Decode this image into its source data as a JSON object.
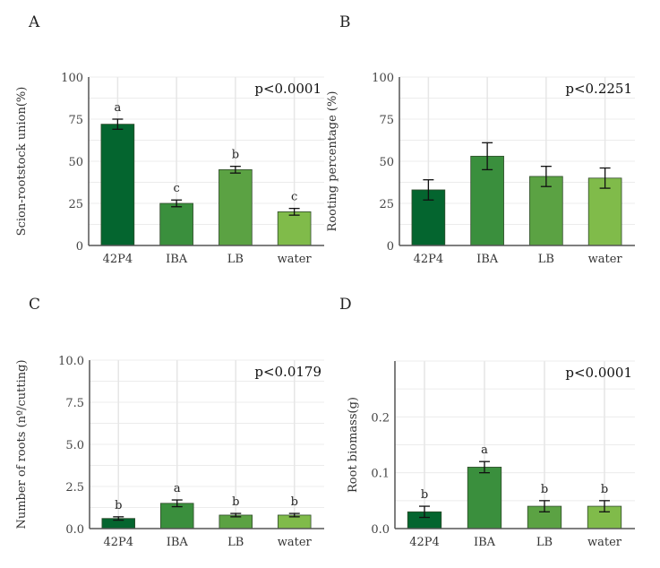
{
  "figure": {
    "panels_count": 4
  },
  "chart_data": [
    {
      "type": "bar",
      "panel": "A",
      "title": "",
      "xlabel": "",
      "ylabel": "Scion-rootstock union(%)",
      "categories": [
        "42P4",
        "IBA",
        "LB",
        "water"
      ],
      "values": [
        72,
        25,
        45,
        20
      ],
      "errors": [
        3,
        2,
        2,
        2
      ],
      "significance_letters": [
        "a",
        "c",
        "b",
        "c"
      ],
      "p_value": "p<0.0001",
      "ylim": [
        0,
        100
      ],
      "yticks": [
        0,
        25,
        50,
        75,
        100
      ],
      "ytick_labels": [
        "0",
        "25",
        "50",
        "75",
        "100"
      ],
      "minor_gridlines_every": 12.5,
      "grid": true,
      "colors": [
        "#04652f",
        "#3a8f3d",
        "#5ba243",
        "#80bb4a"
      ]
    },
    {
      "type": "bar",
      "panel": "B",
      "title": "",
      "xlabel": "",
      "ylabel": "Rooting percentage (%)",
      "categories": [
        "42P4",
        "IBA",
        "LB",
        "water"
      ],
      "values": [
        33,
        53,
        41,
        40
      ],
      "errors": [
        6,
        8,
        6,
        6
      ],
      "significance_letters": [
        "",
        "",
        "",
        ""
      ],
      "p_value": "p<0.2251",
      "ylim": [
        0,
        100
      ],
      "yticks": [
        0,
        25,
        50,
        75,
        100
      ],
      "ytick_labels": [
        "0",
        "25",
        "50",
        "75",
        "100"
      ],
      "minor_gridlines_every": 12.5,
      "grid": true,
      "colors": [
        "#04652f",
        "#3a8f3d",
        "#5ba243",
        "#80bb4a"
      ]
    },
    {
      "type": "bar",
      "panel": "C",
      "title": "",
      "xlabel": "",
      "ylabel": "Number of roots (nº/cutting)",
      "categories": [
        "42P4",
        "IBA",
        "LB",
        "water"
      ],
      "values": [
        0.6,
        1.5,
        0.8,
        0.8
      ],
      "errors": [
        0.1,
        0.2,
        0.1,
        0.1
      ],
      "significance_letters": [
        "b",
        "a",
        "b",
        "b"
      ],
      "p_value": "p<0.0179",
      "ylim": [
        0,
        10
      ],
      "yticks": [
        0,
        2.5,
        5,
        7.5,
        10
      ],
      "ytick_labels": [
        "0.0",
        "2.5",
        "5.0",
        "7.5",
        "10.0"
      ],
      "minor_gridlines_every": 1.25,
      "grid": true,
      "colors": [
        "#04652f",
        "#3a8f3d",
        "#5ba243",
        "#80bb4a"
      ]
    },
    {
      "type": "bar",
      "panel": "D",
      "title": "",
      "xlabel": "",
      "ylabel": "Root biomass(g)",
      "categories": [
        "42P4",
        "IBA",
        "LB",
        "water"
      ],
      "values": [
        0.03,
        0.11,
        0.04,
        0.04
      ],
      "errors": [
        0.01,
        0.01,
        0.01,
        0.01
      ],
      "significance_letters": [
        "b",
        "a",
        "b",
        "b"
      ],
      "p_value": "p<0.0001",
      "ylim": [
        0,
        0.3
      ],
      "yticks": [
        0,
        0.1,
        0.2
      ],
      "ytick_labels": [
        "0.0",
        "0.1",
        "0.2"
      ],
      "minor_gridlines_every": 0.05,
      "grid": true,
      "colors": [
        "#04652f",
        "#3a8f3d",
        "#5ba243",
        "#80bb4a"
      ]
    }
  ]
}
